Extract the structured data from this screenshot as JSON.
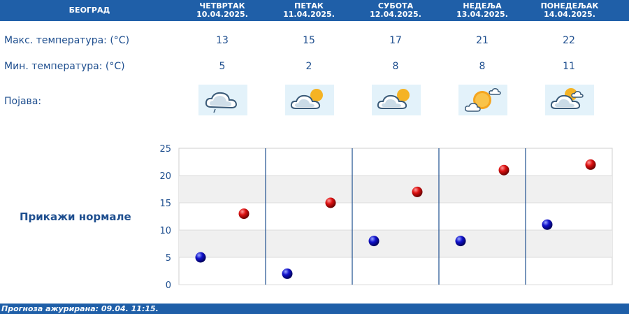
{
  "header": {
    "city": "БЕОГРАД",
    "days": [
      {
        "name": "ЧЕТВРТАК",
        "date": "10.04.2025."
      },
      {
        "name": "ПЕТАК",
        "date": "11.04.2025."
      },
      {
        "name": "СУБОТА",
        "date": "12.04.2025."
      },
      {
        "name": "НЕДЕЉА",
        "date": "13.04.2025."
      },
      {
        "name": "ПОНЕДЕЉАК",
        "date": "14.04.2025."
      }
    ]
  },
  "rows": {
    "max_label": "Макс. температура: (°C)",
    "min_label": "Мин. температура: (°C)",
    "phenomenon_label": "Појава:"
  },
  "max_temps": [
    "13",
    "15",
    "17",
    "21",
    "22"
  ],
  "min_temps": [
    "5",
    "2",
    "8",
    "8",
    "11"
  ],
  "icons": [
    "cloud-drizzle-icon",
    "partly-cloudy-icon",
    "partly-cloudy-icon",
    "mostly-sunny-icon",
    "partly-cloudy-icon"
  ],
  "show_normals": "Прикажи нормале",
  "footer": "Прогноза ажурирана:  09.04.  11:15.",
  "colors": {
    "header_bg": "#1f5fa8",
    "text": "#1f4f8f",
    "max_marker": "#cc0000",
    "min_marker": "#0000bb"
  },
  "chart_data": {
    "type": "scatter",
    "categories": [
      "ЧЕТВРТАК",
      "ПЕТАК",
      "СУБОТА",
      "НЕДЕЉА",
      "ПОНЕДЕЉАК"
    ],
    "series": [
      {
        "values": [
          5,
          2,
          8,
          8,
          11
        ],
        "color": "#0000bb"
      },
      {
        "values": [
          13,
          15,
          17,
          21,
          22
        ],
        "color": "#cc0000"
      }
    ],
    "yticks": [
      "0",
      "5",
      "10",
      "15",
      "20",
      "25"
    ],
    "ylim": [
      0,
      25
    ],
    "grid": true
  }
}
